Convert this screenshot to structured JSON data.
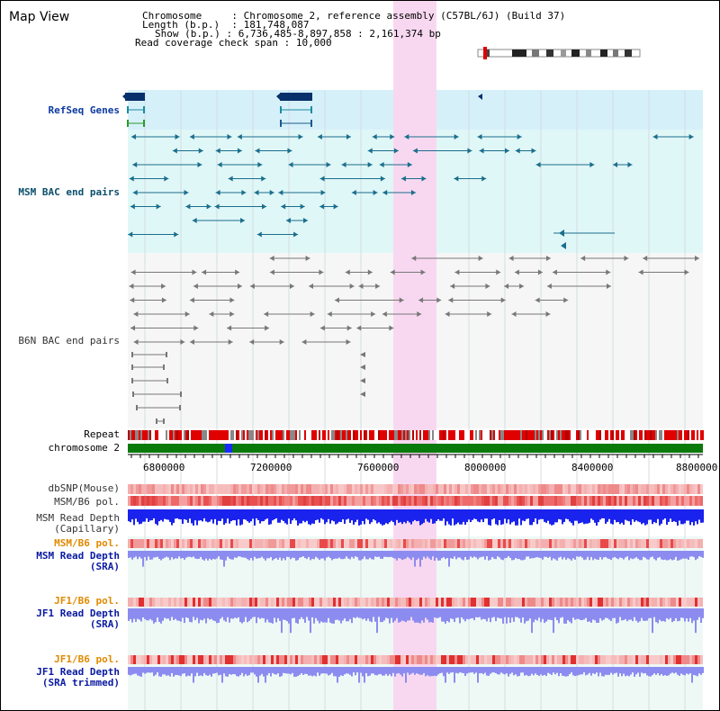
{
  "window": {
    "title": "Map View"
  },
  "info": {
    "chromosome_key": "Chromosome",
    "chromosome_val": "Chromosome 2, reference assembly (C57BL/6J) (Build 37)",
    "length_key": "Length (b.p.)",
    "length_val": "181,748,087",
    "show_key": "Show (b.p.)",
    "show_val": "6,736,485-8,897,858 : 2,161,374 bp",
    "coverage_key": "Read coverage check span",
    "coverage_val": "10,000"
  },
  "tracks": {
    "refseq": "RefSeq Genes",
    "msm_bac": "MSM BAC end pairs",
    "b6n_bac": "B6N BAC end pairs",
    "repeat": "Repeat",
    "chromosome": "chromosome 2",
    "dbsnp": "dbSNP(Mouse)",
    "msm_b6_pol_1": "MSM/B6 pol.",
    "msm_depth_cap_1": "MSM Read Depth",
    "msm_depth_cap_2": "(Capillary)",
    "msm_b6_pol_2": "MSM/B6 pol.",
    "msm_depth_sra_1": "MSM Read Depth",
    "msm_depth_sra_2": "(SRA)",
    "jf1_b6_pol_1": "JF1/B6 pol.",
    "jf1_depth_sra_1": "JF1 Read Depth",
    "jf1_depth_sra_2": "(SRA)",
    "jf1_b6_pol_2": "JF1/B6 pol.",
    "jf1_depth_trim_1": "JF1 Read Depth",
    "jf1_depth_trim_2": "(SRA trimmed)"
  },
  "axis": {
    "ticks": [
      "6800000",
      "7200000",
      "7600000",
      "8000000",
      "8400000",
      "8800000"
    ]
  },
  "colors": {
    "highlight": "#f8d8f0",
    "refseq_bg": "#d6f0fa",
    "msm_bg": "#e0f7f7",
    "b6n_bg": "#f6f6f6",
    "chromosome_bar": "#0a7a0a",
    "chromosome_marker": "#1a2aff",
    "depth_capillary": "#1a22ee",
    "depth_sra": "#8c8cf0",
    "polymorphism": "#f08080",
    "teal_feature": "#1a6e8c",
    "navy_gene": "#08306b",
    "gray_feature": "#777777"
  }
}
